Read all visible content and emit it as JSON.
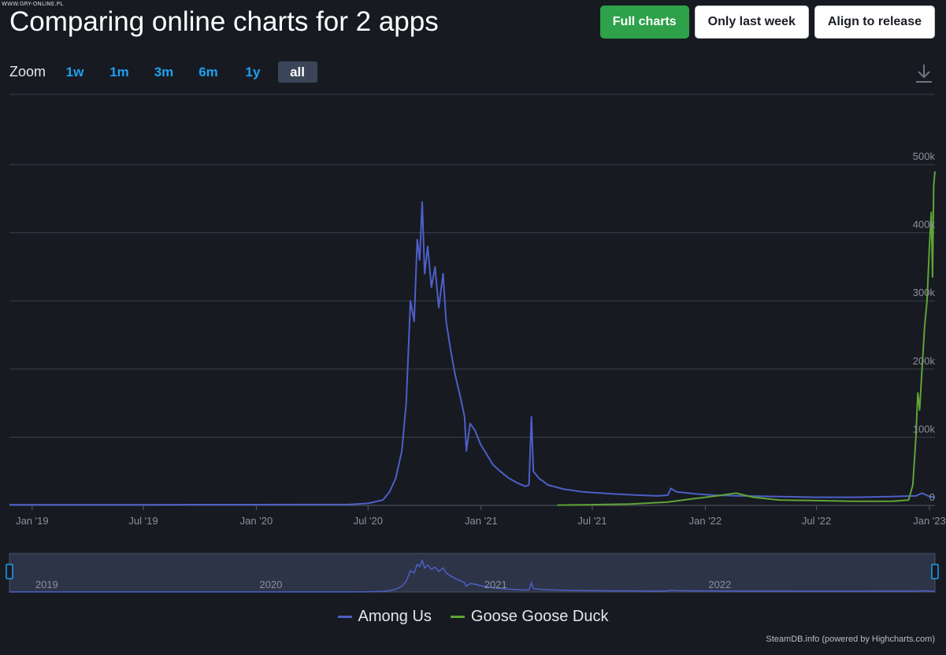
{
  "watermark": "WWW.GRY-ONLINE.PL",
  "page_title": "Comparing online charts for 2 apps",
  "top_buttons": {
    "full_charts": "Full charts",
    "only_last_week": "Only last week",
    "align_to_release": "Align to release"
  },
  "zoom": {
    "label": "Zoom",
    "options": [
      "1w",
      "1m",
      "3m",
      "6m",
      "1y",
      "all"
    ],
    "active": "all"
  },
  "icons": {
    "download": "download-icon",
    "navigator_handle": "navigator-handle-icon"
  },
  "credits": "SteamDB.info (powered by Highcharts.com)",
  "colors": {
    "background": "#171a21",
    "among_us": "#4d5fc6",
    "goose_goose_duck": "#5fa335",
    "accent_blue": "#1ea0f0",
    "button_green": "#2ea14a"
  },
  "chart_data": {
    "type": "line",
    "title": "",
    "xlabel": "",
    "ylabel": "",
    "x_ticks": [
      "Jan '19",
      "Jul '19",
      "Jan '20",
      "Jul '20",
      "Jan '21",
      "Jul '21",
      "Jan '22",
      "Jul '22",
      "Jan '23"
    ],
    "y_ticks": [
      "0",
      "100k",
      "200k",
      "300k",
      "400k",
      "500k"
    ],
    "ylim": [
      0,
      500000
    ],
    "xlim": [
      "2018-11-25",
      "2023-01-10"
    ],
    "grid": true,
    "legend_position": "bottom-center",
    "navigator_labels": [
      "2019",
      "2020",
      "2021",
      "2022"
    ],
    "series": [
      {
        "name": "Among Us",
        "color": "#4d5fc6",
        "points": [
          [
            "2018-11-25",
            1000
          ],
          [
            "2019-06-01",
            1000
          ],
          [
            "2020-01-01",
            1200
          ],
          [
            "2020-06-01",
            1500
          ],
          [
            "2020-07-01",
            3000
          ],
          [
            "2020-07-25",
            8000
          ],
          [
            "2020-08-05",
            20000
          ],
          [
            "2020-08-15",
            40000
          ],
          [
            "2020-08-25",
            80000
          ],
          [
            "2020-09-01",
            150000
          ],
          [
            "2020-09-08",
            300000
          ],
          [
            "2020-09-14",
            270000
          ],
          [
            "2020-09-19",
            390000
          ],
          [
            "2020-09-23",
            360000
          ],
          [
            "2020-09-27",
            445000
          ],
          [
            "2020-10-01",
            340000
          ],
          [
            "2020-10-06",
            380000
          ],
          [
            "2020-10-12",
            320000
          ],
          [
            "2020-10-18",
            350000
          ],
          [
            "2020-10-24",
            290000
          ],
          [
            "2020-10-31",
            340000
          ],
          [
            "2020-11-05",
            270000
          ],
          [
            "2020-11-12",
            230000
          ],
          [
            "2020-11-20",
            190000
          ],
          [
            "2020-11-28",
            160000
          ],
          [
            "2020-12-05",
            130000
          ],
          [
            "2020-12-08",
            80000
          ],
          [
            "2020-12-14",
            120000
          ],
          [
            "2020-12-22",
            110000
          ],
          [
            "2020-12-31",
            90000
          ],
          [
            "2021-01-10",
            75000
          ],
          [
            "2021-01-20",
            60000
          ],
          [
            "2021-02-01",
            50000
          ],
          [
            "2021-02-15",
            40000
          ],
          [
            "2021-03-01",
            33000
          ],
          [
            "2021-03-14",
            28000
          ],
          [
            "2021-03-20",
            30000
          ],
          [
            "2021-03-24",
            130000
          ],
          [
            "2021-03-27",
            50000
          ],
          [
            "2021-04-05",
            40000
          ],
          [
            "2021-04-20",
            30000
          ],
          [
            "2021-05-15",
            24000
          ],
          [
            "2021-06-15",
            20000
          ],
          [
            "2021-08-01",
            17000
          ],
          [
            "2021-09-15",
            15000
          ],
          [
            "2021-10-15",
            14000
          ],
          [
            "2021-11-01",
            15000
          ],
          [
            "2021-11-06",
            25000
          ],
          [
            "2021-11-15",
            20000
          ],
          [
            "2021-12-15",
            17000
          ],
          [
            "2022-01-15",
            15000
          ],
          [
            "2022-03-01",
            14000
          ],
          [
            "2022-05-01",
            13000
          ],
          [
            "2022-07-01",
            12000
          ],
          [
            "2022-09-01",
            12000
          ],
          [
            "2022-11-01",
            13000
          ],
          [
            "2022-12-10",
            14000
          ],
          [
            "2022-12-20",
            18000
          ],
          [
            "2023-01-01",
            13000
          ],
          [
            "2023-01-10",
            12000
          ]
        ]
      },
      {
        "name": "Goose Goose Duck",
        "color": "#5fa335",
        "points": [
          [
            "2021-05-05",
            500
          ],
          [
            "2021-07-01",
            1000
          ],
          [
            "2021-09-01",
            2000
          ],
          [
            "2021-11-01",
            5000
          ],
          [
            "2021-12-15",
            10000
          ],
          [
            "2022-01-20",
            14000
          ],
          [
            "2022-02-20",
            18000
          ],
          [
            "2022-03-20",
            12000
          ],
          [
            "2022-05-01",
            8000
          ],
          [
            "2022-07-01",
            7000
          ],
          [
            "2022-09-01",
            6000
          ],
          [
            "2022-11-01",
            6000
          ],
          [
            "2022-11-28",
            8000
          ],
          [
            "2022-12-05",
            30000
          ],
          [
            "2022-12-10",
            100000
          ],
          [
            "2022-12-13",
            165000
          ],
          [
            "2022-12-16",
            140000
          ],
          [
            "2022-12-20",
            200000
          ],
          [
            "2022-12-24",
            260000
          ],
          [
            "2022-12-28",
            300000
          ],
          [
            "2023-01-01",
            380000
          ],
          [
            "2023-01-04",
            430000
          ],
          [
            "2023-01-06",
            335000
          ],
          [
            "2023-01-08",
            470000
          ],
          [
            "2023-01-10",
            490000
          ]
        ]
      }
    ]
  }
}
